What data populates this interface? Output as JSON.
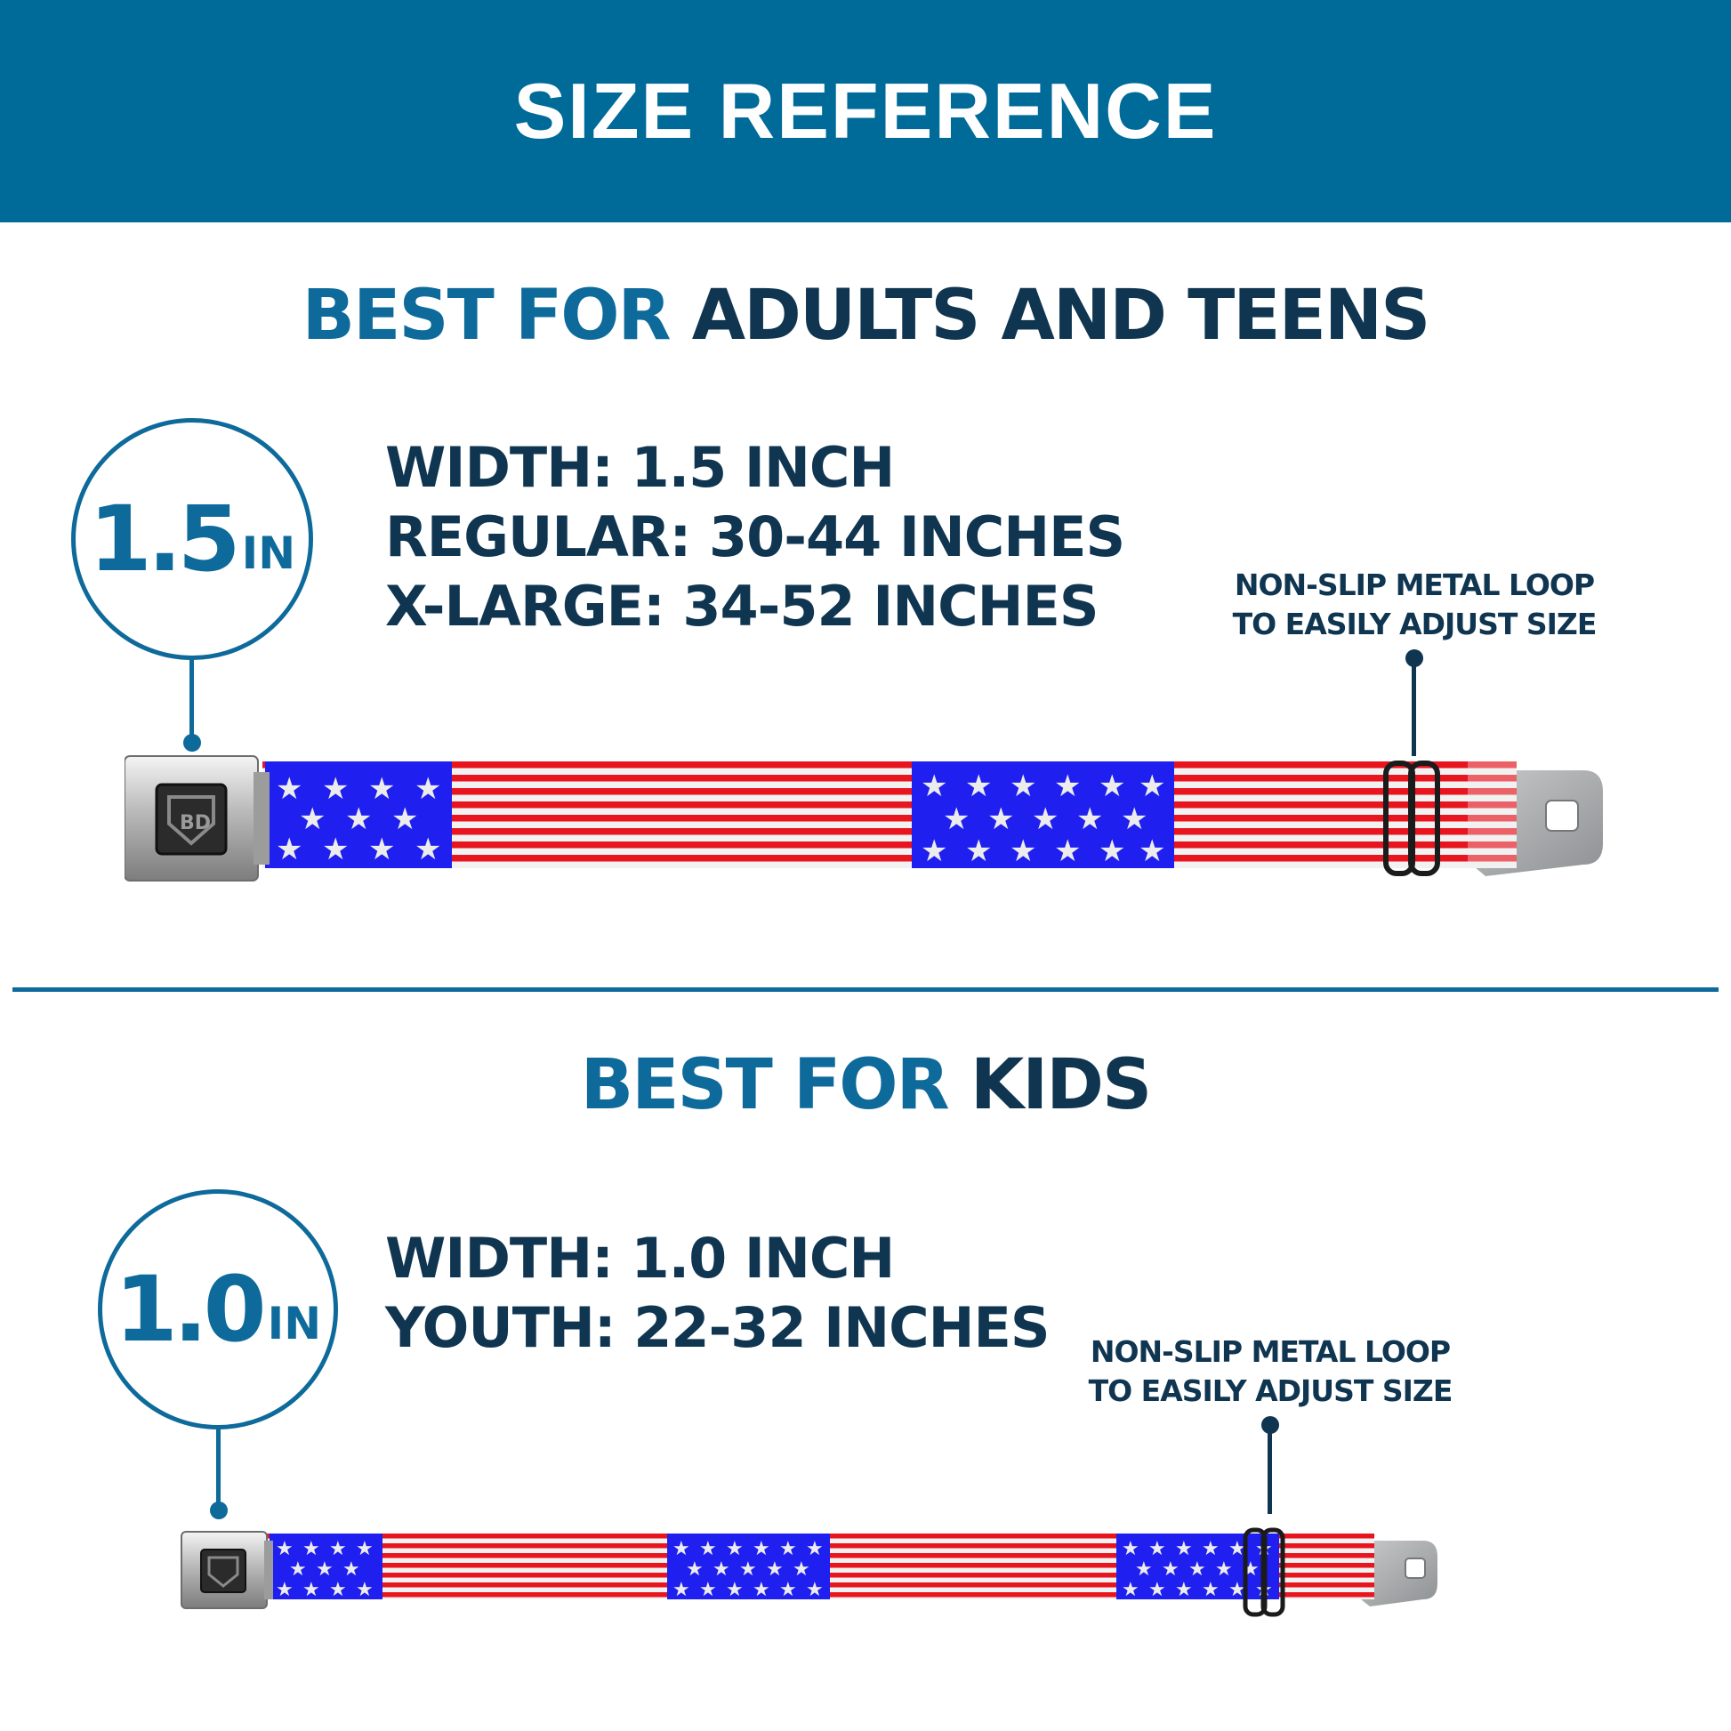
{
  "header": {
    "title": "SIZE REFERENCE"
  },
  "adults": {
    "heading_accent": "BEST FOR",
    "heading_strong": "ADULTS AND TEENS",
    "badge_number": "1.5",
    "badge_unit": "IN",
    "specs": [
      "WIDTH: 1.5 INCH",
      "REGULAR: 30-44 INCHES",
      "X-LARGE: 34-52 INCHES"
    ],
    "loop_note": [
      "NON-SLIP METAL LOOP",
      "TO EASILY ADJUST SIZE"
    ]
  },
  "kids": {
    "heading_accent": "BEST FOR",
    "heading_strong": "KIDS",
    "badge_number": "1.0",
    "badge_unit": "IN",
    "specs": [
      "WIDTH: 1.0 INCH",
      "YOUTH: 22-32 INCHES"
    ],
    "loop_note": [
      "NON-SLIP METAL LOOP",
      "TO EASILY ADJUST SIZE"
    ]
  },
  "colors": {
    "header_bg": "#006a98",
    "accent_blue": "#0d6a9a",
    "navy_text": "#0f3550",
    "flag_red": "#e8141e",
    "flag_blue": "#1f1ff0"
  },
  "icons": [
    "seatbelt-buckle-icon",
    "belt-tip-icon",
    "metal-loop-icon",
    "star-icon"
  ]
}
